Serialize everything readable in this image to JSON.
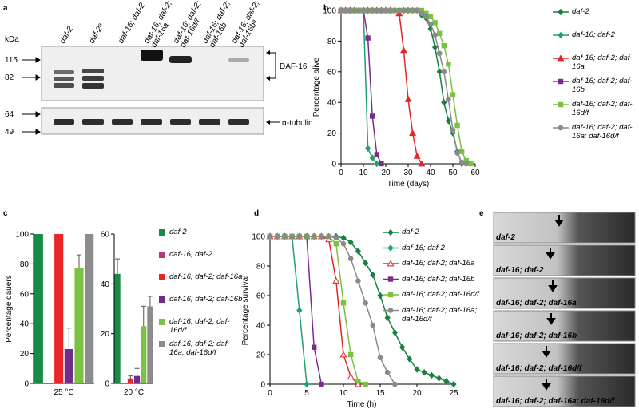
{
  "panel_labels": [
    "a",
    "b",
    "c",
    "d",
    "e"
  ],
  "blot": {
    "kda_label": "kDa",
    "lanes": [
      [
        "daf-2"
      ],
      [
        "daf-2ᵃ"
      ],
      [
        "daf-16; daf-2"
      ],
      [
        "daf-16; daf-2;",
        "daf-16a"
      ],
      [
        "daf-16; daf-2;",
        "daf-16d/f"
      ],
      [
        "daf-16; daf-2;",
        "daf-16b"
      ],
      [
        "daf-16; daf-2;",
        "daf-16bᵃ"
      ]
    ],
    "markers": [
      115,
      82,
      64,
      49
    ],
    "band_labels": [
      "DAF-16",
      "α-tubulin"
    ]
  },
  "chart_data": [
    {
      "type": "line",
      "xlabel": "Time (days)",
      "ylabel": "Percentage alive",
      "x": [
        0,
        2,
        4,
        6,
        8,
        10,
        12,
        14,
        16,
        18,
        20,
        22,
        24,
        26,
        28,
        30,
        32,
        34,
        36,
        38,
        40,
        42,
        44,
        46,
        48,
        50,
        52,
        54,
        56,
        58
      ],
      "xlim": [
        0,
        60
      ],
      "xticks": [
        0,
        10,
        20,
        30,
        40,
        50,
        60
      ],
      "ylim": [
        0,
        100
      ],
      "yticks": [
        0,
        20,
        40,
        60,
        80,
        100
      ],
      "series": [
        {
          "name": "daf-2",
          "color": "#17813f",
          "marker": "diamond",
          "values": [
            100,
            100,
            100,
            100,
            100,
            100,
            100,
            100,
            100,
            100,
            100,
            100,
            100,
            100,
            100,
            100,
            100,
            100,
            97,
            95,
            88,
            76,
            60,
            40,
            28,
            20,
            8,
            0,
            null,
            null
          ]
        },
        {
          "name": "daf-16; daf-2",
          "color": "#21a06a",
          "marker": "diamond",
          "values": [
            100,
            100,
            100,
            100,
            100,
            100,
            10,
            4,
            0,
            null,
            null,
            null,
            null,
            null,
            null,
            null,
            null,
            null,
            null,
            null,
            null,
            null,
            null,
            null,
            null,
            null,
            null,
            null,
            null,
            null
          ]
        },
        {
          "name": "daf-16; daf-2; daf-16a",
          "color": "#e42528",
          "marker": "triangle",
          "values": [
            100,
            100,
            100,
            100,
            100,
            100,
            100,
            100,
            100,
            100,
            100,
            100,
            100,
            98,
            74,
            42,
            20,
            5,
            0,
            null,
            null,
            null,
            null,
            null,
            null,
            null,
            null,
            null,
            null,
            null
          ]
        },
        {
          "name": "daf-16; daf-2; daf-16b",
          "color": "#7a2c8c",
          "marker": "square",
          "values": [
            100,
            100,
            100,
            100,
            100,
            100,
            82,
            31,
            6,
            0,
            null,
            null,
            null,
            null,
            null,
            null,
            null,
            null,
            null,
            null,
            null,
            null,
            null,
            null,
            null,
            null,
            null,
            null,
            null,
            null
          ]
        },
        {
          "name": "daf-16; daf-2; daf-16d/f",
          "color": "#7ac142",
          "marker": "square",
          "values": [
            100,
            100,
            100,
            100,
            100,
            100,
            100,
            100,
            100,
            100,
            100,
            100,
            100,
            100,
            100,
            100,
            100,
            100,
            100,
            98,
            96,
            92,
            85,
            77,
            65,
            45,
            25,
            8,
            2,
            0
          ]
        },
        {
          "name": "daf-16; daf-2; daf-16a; daf-16d/f",
          "color": "#8a8a8a",
          "marker": "circle",
          "values": [
            100,
            100,
            100,
            100,
            100,
            100,
            100,
            100,
            100,
            100,
            100,
            100,
            100,
            100,
            100,
            100,
            100,
            100,
            98,
            96,
            91,
            84,
            72,
            60,
            42,
            22,
            7,
            1,
            0,
            null
          ]
        }
      ]
    },
    {
      "type": "bar",
      "ylabel": "Percentage dauers",
      "categories": [
        "25 °C"
      ],
      "ylim": [
        0,
        100
      ],
      "yticks": [
        0,
        20,
        40,
        60,
        80,
        100
      ],
      "series": [
        {
          "name": "daf-2",
          "color": "#1a8a47",
          "values": [
            100
          ]
        },
        {
          "name": "daf-16; daf-2",
          "color": "#b23a7a",
          "values": [
            0
          ]
        },
        {
          "name": "daf-16; daf-2; daf-16a",
          "color": "#e8262a",
          "values": [
            100
          ]
        },
        {
          "name": "daf-16; daf-2; daf-16b",
          "color": "#6d2d8a",
          "values": [
            23
          ],
          "errors": [
            14
          ]
        },
        {
          "name": "daf-16; daf-2; daf-16d/f",
          "color": "#7cc242",
          "values": [
            77
          ],
          "errors": [
            9
          ]
        },
        {
          "name": "daf-16; daf-2; daf-16a; daf-16d/f",
          "color": "#8c8c8c",
          "values": [
            100
          ]
        }
      ]
    },
    {
      "type": "bar",
      "categories": [
        "20 °C"
      ],
      "ylim": [
        0,
        60
      ],
      "yticks": [
        0,
        20,
        40,
        60
      ],
      "series": [
        {
          "color": "#1a8a47",
          "values": [
            44
          ],
          "errors": [
            6
          ]
        },
        {
          "color": "#b23a7a",
          "values": [
            0
          ]
        },
        {
          "color": "#e8262a",
          "values": [
            2
          ],
          "errors": [
            1
          ]
        },
        {
          "color": "#6d2d8a",
          "values": [
            3
          ],
          "errors": [
            3
          ]
        },
        {
          "color": "#7cc242",
          "values": [
            23
          ],
          "errors": [
            8
          ]
        },
        {
          "color": "#8c8c8c",
          "values": [
            31
          ],
          "errors": [
            4
          ]
        }
      ]
    },
    {
      "type": "line",
      "xlabel": "Time (h)",
      "ylabel": "Percentage survival",
      "x": [
        0,
        1,
        2,
        3,
        4,
        5,
        6,
        7,
        8,
        9,
        10,
        11,
        12,
        13,
        14,
        15,
        16,
        17,
        18,
        19,
        20,
        21,
        22,
        23,
        24,
        25
      ],
      "xlim": [
        0,
        25
      ],
      "xticks": [
        0,
        5,
        10,
        15,
        20,
        25
      ],
      "ylim": [
        0,
        100
      ],
      "yticks": [
        0,
        20,
        40,
        60,
        80,
        100
      ],
      "series": [
        {
          "name": "daf-2",
          "color": "#17813f",
          "marker": "diamond",
          "values": [
            100,
            100,
            100,
            100,
            100,
            100,
            100,
            100,
            100,
            100,
            99,
            96,
            90,
            82,
            74,
            60,
            45,
            35,
            25,
            17,
            10,
            8,
            6,
            4,
            2,
            0
          ]
        },
        {
          "name": "daf-16; daf-2",
          "color": "#21a06a",
          "marker": "diamond",
          "values": [
            100,
            100,
            100,
            100,
            50,
            0,
            null,
            null,
            null,
            null,
            null,
            null,
            null,
            null,
            null,
            null,
            null,
            null,
            null,
            null,
            null,
            null,
            null,
            null,
            null,
            null
          ]
        },
        {
          "name": "daf-16; daf-2; daf-16a",
          "color": "#e42528",
          "marker": "triangle-open",
          "values": [
            100,
            100,
            100,
            100,
            100,
            100,
            100,
            100,
            98,
            70,
            20,
            5,
            0,
            null,
            null,
            null,
            null,
            null,
            null,
            null,
            null,
            null,
            null,
            null,
            null,
            null
          ]
        },
        {
          "name": "daf-16; daf-2; daf-16b",
          "color": "#7a2c8c",
          "marker": "square",
          "values": [
            100,
            100,
            100,
            100,
            100,
            100,
            25,
            0,
            null,
            null,
            null,
            null,
            null,
            null,
            null,
            null,
            null,
            null,
            null,
            null,
            null,
            null,
            null,
            null,
            null,
            null
          ]
        },
        {
          "name": "daf-16; daf-2; daf-16d/f",
          "color": "#7ac142",
          "marker": "square",
          "values": [
            100,
            100,
            100,
            100,
            100,
            100,
            100,
            100,
            100,
            95,
            55,
            20,
            2,
            0,
            null,
            null,
            null,
            null,
            null,
            null,
            null,
            null,
            null,
            null,
            null,
            null
          ]
        },
        {
          "name": "daf-16; daf-2; daf-16a; daf-16d/f",
          "color": "#8a8a8a",
          "marker": "circle",
          "values": [
            100,
            100,
            100,
            100,
            100,
            100,
            100,
            100,
            100,
            99,
            95,
            85,
            70,
            55,
            40,
            18,
            8,
            0,
            null,
            null,
            null,
            null,
            null,
            null,
            null,
            null
          ]
        }
      ]
    }
  ],
  "images": {
    "labels": [
      "daf-2",
      "daf-16; daf-2",
      "daf-16; daf-2; daf-16a",
      "daf-16; daf-2; daf-16b",
      "daf-16; daf-2; daf-16d/f",
      "daf-16; daf-2; daf-16a; daf-16d/f"
    ]
  }
}
